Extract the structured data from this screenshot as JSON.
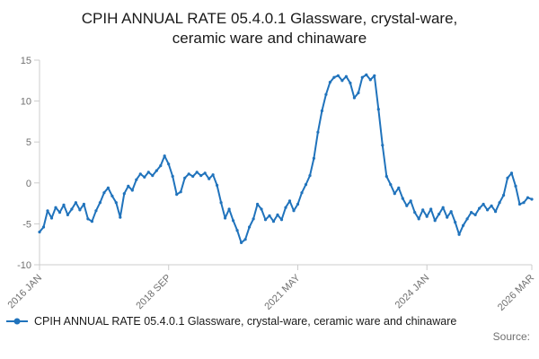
{
  "title": "CPIH ANNUAL RATE 05.4.0.1 Glassware, crystal-ware, ceramic ware and chinaware",
  "legend": {
    "label": "CPIH ANNUAL RATE 05.4.0.1 Glassware, crystal-ware, ceramic ware and chinaware"
  },
  "source_label": "Source:",
  "chart_data": {
    "type": "line",
    "title": "CPIH ANNUAL RATE 05.4.0.1 Glassware, crystal-ware, ceramic ware and chinaware",
    "series_name": "CPIH ANNUAL RATE 05.4.0.1 Glassware, crystal-ware, ceramic ware and chinaware",
    "frequency": "monthly",
    "x_start": "2016 JAN",
    "x_end": "2026 MAR",
    "values": [
      -6.0,
      -5.4,
      -3.4,
      -4.3,
      -3.0,
      -3.6,
      -2.7,
      -3.9,
      -3.2,
      -2.4,
      -3.3,
      -2.6,
      -4.4,
      -4.7,
      -3.4,
      -2.4,
      -1.2,
      -0.6,
      -1.6,
      -2.4,
      -4.2,
      -1.3,
      -0.4,
      -0.9,
      0.4,
      1.1,
      0.7,
      1.3,
      0.9,
      1.5,
      2.1,
      3.3,
      2.3,
      0.8,
      -1.4,
      -1.1,
      0.6,
      1.1,
      0.8,
      1.3,
      0.9,
      1.2,
      0.5,
      1.0,
      -0.3,
      -2.4,
      -4.3,
      -3.2,
      -4.6,
      -5.8,
      -7.3,
      -6.9,
      -5.4,
      -4.4,
      -2.6,
      -3.2,
      -4.5,
      -4.0,
      -4.7,
      -3.9,
      -4.5,
      -3.0,
      -2.2,
      -3.4,
      -2.6,
      -1.2,
      -0.2,
      0.9,
      3.0,
      6.2,
      8.8,
      10.8,
      12.3,
      12.9,
      13.1,
      12.5,
      13.0,
      12.2,
      10.4,
      11.0,
      12.9,
      13.2,
      12.6,
      13.1,
      9.0,
      4.6,
      0.8,
      -0.2,
      -1.3,
      -0.6,
      -1.9,
      -2.8,
      -2.2,
      -3.6,
      -4.4,
      -3.3,
      -4.1,
      -3.2,
      -4.6,
      -3.8,
      -3.0,
      -4.2,
      -3.5,
      -4.8,
      -6.3,
      -5.2,
      -4.4,
      -3.6,
      -3.9,
      -3.1,
      -2.6,
      -3.3,
      -2.8,
      -3.5,
      -2.4,
      -1.5,
      0.6,
      1.2,
      -0.4,
      -2.6,
      -2.4,
      -1.8,
      -2.0
    ],
    "x_ticks": [
      {
        "index": 0,
        "label": "2016 JAN"
      },
      {
        "index": 32,
        "label": "2018 SEP"
      },
      {
        "index": 64,
        "label": "2021 MAY"
      },
      {
        "index": 96,
        "label": "2024 JAN"
      },
      {
        "index": 122,
        "label": "2026 MAR"
      }
    ],
    "y_ticks": [
      15,
      10,
      5,
      0,
      -5,
      -10
    ],
    "ylim": [
      -10,
      15
    ],
    "xlabel": "",
    "ylabel": "",
    "grid": false,
    "legend_position": "bottom-left",
    "line_color": "#2073bc",
    "axis_color": "#cccccc",
    "tick_label_color": "#707070"
  }
}
